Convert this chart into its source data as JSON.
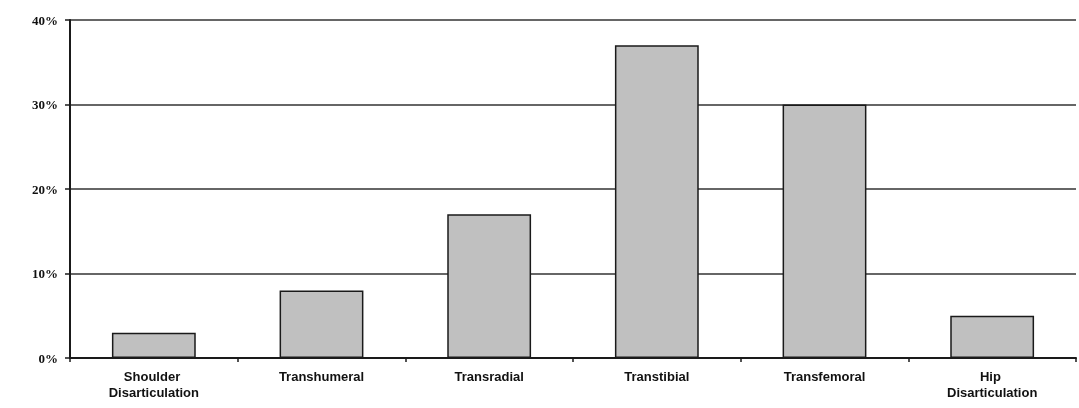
{
  "chart_data": {
    "type": "bar",
    "categories": [
      "Shoulder Disarticulation",
      "Transhumeral",
      "Transradial",
      "Transtibial",
      "Transfemoral",
      "Hip Disarticulation"
    ],
    "values": [
      3,
      8,
      17,
      37,
      30,
      5
    ],
    "color": "#c0c0c0",
    "ylim": [
      0,
      40
    ],
    "yticks": [
      {
        "value": 0,
        "label": "0%"
      },
      {
        "value": 10,
        "label": "10%"
      },
      {
        "value": 20,
        "label": "20%"
      },
      {
        "value": 30,
        "label": "30%"
      },
      {
        "value": 40,
        "label": "40%"
      }
    ],
    "grid": "y"
  }
}
